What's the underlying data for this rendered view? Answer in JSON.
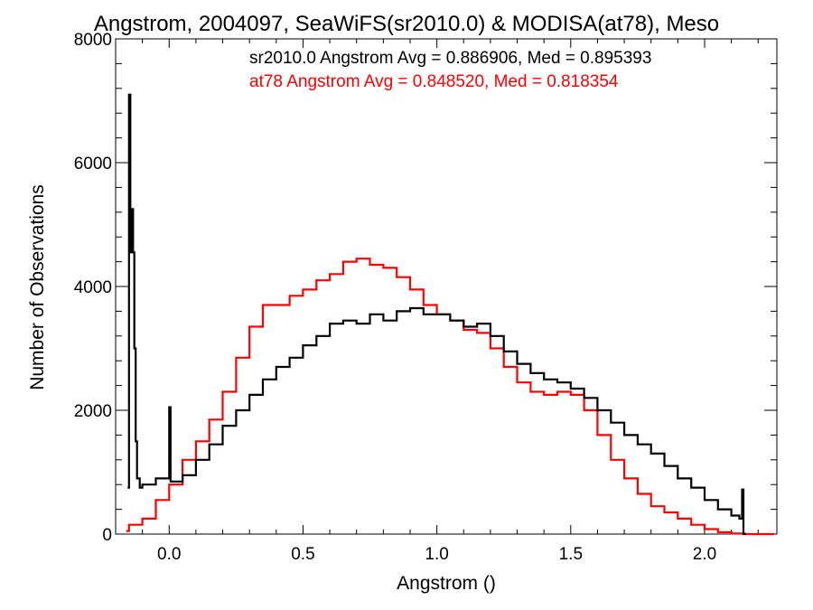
{
  "chart_data": {
    "type": "line",
    "title": "Angstrom, 2004097, SeaWiFS(sr2010.0) & MODISA(at78), Meso",
    "xlabel": "Angstrom ()",
    "ylabel": "Number of Observations",
    "xlim": [
      -0.2,
      2.27
    ],
    "ylim": [
      0,
      8000
    ],
    "x_ticks": [
      "0.0",
      "0.5",
      "1.0",
      "1.5",
      "2.0"
    ],
    "y_ticks": [
      "0",
      "2000",
      "4000",
      "6000",
      "8000"
    ],
    "grid": false,
    "annotations": [
      {
        "text": "sr2010.0 Angstrom Avg = 0.886906, Med = 0.895393",
        "color": "#000000"
      },
      {
        "text": "at78 Angstrom Avg = 0.848520, Med = 0.818354",
        "color": "#ff0000"
      }
    ],
    "series": [
      {
        "name": "sr2010.0",
        "color": "#000000",
        "style": "step",
        "x": [
          -0.155,
          -0.15,
          -0.145,
          -0.14,
          -0.135,
          -0.13,
          -0.125,
          -0.12,
          -0.11,
          -0.1,
          -0.08,
          -0.05,
          0.0,
          0.005,
          0.05,
          0.1,
          0.15,
          0.2,
          0.25,
          0.3,
          0.35,
          0.4,
          0.45,
          0.5,
          0.55,
          0.6,
          0.65,
          0.7,
          0.75,
          0.8,
          0.85,
          0.9,
          0.95,
          1.0,
          1.05,
          1.1,
          1.15,
          1.2,
          1.25,
          1.3,
          1.35,
          1.4,
          1.45,
          1.5,
          1.55,
          1.6,
          1.65,
          1.7,
          1.75,
          1.8,
          1.85,
          1.9,
          1.95,
          2.0,
          2.05,
          2.1,
          2.13,
          2.14,
          2.145
        ],
        "y": [
          750,
          7100,
          4550,
          5250,
          4550,
          3000,
          1500,
          900,
          750,
          800,
          800,
          900,
          2050,
          850,
          950,
          1200,
          1450,
          1750,
          2000,
          2250,
          2500,
          2700,
          2850,
          3050,
          3200,
          3400,
          3450,
          3400,
          3550,
          3450,
          3600,
          3650,
          3550,
          3550,
          3450,
          3350,
          3400,
          3200,
          2950,
          2750,
          2600,
          2500,
          2450,
          2350,
          2200,
          2000,
          1800,
          1600,
          1450,
          1300,
          1100,
          900,
          750,
          550,
          400,
          300,
          250,
          720,
          0
        ]
      },
      {
        "name": "at78",
        "color": "#ff0000",
        "style": "step",
        "x": [
          -0.16,
          -0.15,
          -0.1,
          -0.05,
          0.0,
          0.05,
          0.1,
          0.15,
          0.2,
          0.25,
          0.3,
          0.35,
          0.4,
          0.45,
          0.5,
          0.55,
          0.6,
          0.65,
          0.7,
          0.75,
          0.8,
          0.85,
          0.9,
          0.95,
          1.0,
          1.05,
          1.1,
          1.15,
          1.2,
          1.25,
          1.3,
          1.35,
          1.4,
          1.45,
          1.5,
          1.55,
          1.6,
          1.65,
          1.7,
          1.75,
          1.8,
          1.85,
          1.9,
          1.95,
          2.0,
          2.05,
          2.1,
          2.15,
          2.2,
          2.25
        ],
        "y": [
          50,
          150,
          250,
          550,
          800,
          1200,
          1500,
          1850,
          2300,
          2850,
          3350,
          3700,
          3700,
          3850,
          3950,
          4100,
          4200,
          4400,
          4450,
          4350,
          4300,
          4150,
          3950,
          3700,
          3550,
          3450,
          3300,
          3250,
          3000,
          2700,
          2450,
          2300,
          2250,
          2300,
          2250,
          2000,
          1600,
          1200,
          900,
          650,
          450,
          350,
          250,
          150,
          80,
          30,
          10,
          0,
          0,
          0
        ]
      }
    ]
  }
}
